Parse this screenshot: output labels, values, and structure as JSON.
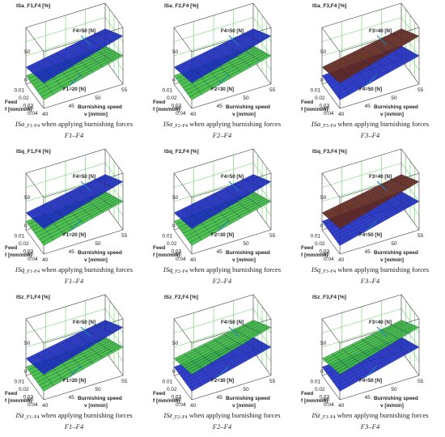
{
  "caption_suffix": "when applying burnishing forces",
  "axis_labels": {
    "feed_name": "Feed",
    "feed_unit": "f [mm/min]",
    "speed_name": "Burnishing speed",
    "speed_unit": "v [m/min]"
  },
  "colors": {
    "blue_surface": "#1f2fc8",
    "green_surface": "#3fbf3f",
    "brown_surface": "#6b2a1a",
    "box_grid": "#6cd36c",
    "annotation_arrow": "#1e7fc0"
  },
  "chart_data": [
    {
      "type": "surface",
      "title": "ISa_F1,F4 [%]",
      "caption_symbol": "ISa",
      "caption_sub": "_F1–F4",
      "caption_forces": "F1–F4",
      "z_ticks": [
        "50",
        "0",
        "−50"
      ],
      "f_ticks": [
        "0.04",
        "0.03",
        "0.02",
        "0.01"
      ],
      "v_ticks": [
        "40",
        "45",
        "50",
        "55"
      ],
      "top_surface": "blue",
      "bottom_surface": "green",
      "labels": [
        {
          "text": "F4=50 [N]",
          "series": "top"
        },
        {
          "text": "F1=20 [N]",
          "series": "bottom"
        }
      ],
      "z_range": [
        -50,
        50
      ]
    },
    {
      "type": "surface",
      "title": "ISa_F2,F4 [%]",
      "caption_symbol": "ISa",
      "caption_sub": "_F2–F4",
      "caption_forces": "F2–F4",
      "z_ticks": [
        "50",
        "0",
        "−50"
      ],
      "f_ticks": [
        "0.04",
        "0.03",
        "0.02",
        "0.01"
      ],
      "v_ticks": [
        "40",
        "45",
        "50",
        "55"
      ],
      "top_surface": "blue",
      "bottom_surface": "green",
      "labels": [
        {
          "text": "F4=50 [N]",
          "series": "top"
        },
        {
          "text": "F2=30 [N]",
          "series": "bottom"
        }
      ],
      "z_range": [
        -50,
        50
      ]
    },
    {
      "type": "surface",
      "title": "ISa_F3,F4 [%]",
      "caption_symbol": "ISa",
      "caption_sub": "_F3–F4",
      "caption_forces": "F3–F4",
      "z_ticks": [
        "50",
        "0",
        "−50"
      ],
      "f_ticks": [
        "0.04",
        "0.03",
        "0.02",
        "0.01"
      ],
      "v_ticks": [
        "40",
        "45",
        "50",
        "55"
      ],
      "top_surface": "brown",
      "bottom_surface": "blue",
      "labels": [
        {
          "text": "F3=40 [N]",
          "series": "top"
        },
        {
          "text": "F4=50 [N]",
          "series": "bottom"
        }
      ],
      "z_range": [
        -50,
        50
      ]
    },
    {
      "type": "surface",
      "title": "ISq_F1,F4 [%]",
      "caption_symbol": "ISq",
      "caption_sub": "_F1–F4",
      "caption_forces": "F1–F4",
      "z_ticks": [
        "50",
        "0",
        "−50"
      ],
      "f_ticks": [
        "0.04",
        "0.03",
        "0.02",
        "0.01"
      ],
      "v_ticks": [
        "40",
        "45",
        "50",
        "55"
      ],
      "top_surface": "blue",
      "bottom_surface": "green",
      "labels": [
        {
          "text": "F4=50 [N]",
          "series": "top"
        },
        {
          "text": "F1=20 [N]",
          "series": "bottom"
        }
      ],
      "z_range": [
        -50,
        50
      ]
    },
    {
      "type": "surface",
      "title": "ISq_F2,F4 [%]",
      "caption_symbol": "ISq",
      "caption_sub": "_F2–F4",
      "caption_forces": "F2–F4",
      "z_ticks": [
        "50",
        "0",
        "−50"
      ],
      "f_ticks": [
        "0.04",
        "0.03",
        "0.02",
        "0.01"
      ],
      "v_ticks": [
        "40",
        "45",
        "50",
        "55"
      ],
      "top_surface": "blue",
      "bottom_surface": "green",
      "labels": [
        {
          "text": "F4=50 [N]",
          "series": "top"
        },
        {
          "text": "F2=30 [N]",
          "series": "bottom"
        }
      ],
      "z_range": [
        -50,
        50
      ]
    },
    {
      "type": "surface",
      "title": "ISq_F3,F4 [%]",
      "caption_symbol": "ISq",
      "caption_sub": "_F3–F4",
      "caption_forces": "F3–F4",
      "z_ticks": [
        "50",
        "0",
        "−50"
      ],
      "f_ticks": [
        "0.04",
        "0.03",
        "0.02",
        "0.01"
      ],
      "v_ticks": [
        "40",
        "45",
        "50",
        "55"
      ],
      "top_surface": "brown",
      "bottom_surface": "blue",
      "labels": [
        {
          "text": "F3=40 [N]",
          "series": "top"
        },
        {
          "text": "F4=50 [N]",
          "series": "bottom"
        }
      ],
      "z_range": [
        -50,
        50
      ]
    },
    {
      "type": "surface",
      "title": "ISz_F1,F4 [%]",
      "caption_symbol": "ISz",
      "caption_sub": "_F1–F4",
      "caption_forces": "F1–F4",
      "z_ticks": [
        "50",
        "0",
        "−50"
      ],
      "f_ticks": [
        "0.04",
        "0.03",
        "0.02",
        "0.01"
      ],
      "v_ticks": [
        "40",
        "45",
        "50",
        "55"
      ],
      "top_surface": "blue",
      "bottom_surface": "green",
      "labels": [
        {
          "text": "F4=50 [N]",
          "series": "top"
        },
        {
          "text": "F1=20 [N]",
          "series": "bottom"
        }
      ],
      "z_range": [
        -50,
        50
      ]
    },
    {
      "type": "surface",
      "title": "ISz_F2,F4 [%]",
      "caption_symbol": "ISz",
      "caption_sub": "_F2–F4",
      "caption_forces": "F2–F4",
      "z_ticks": [
        "50",
        "0",
        "−50"
      ],
      "f_ticks": [
        "0.04",
        "0.03",
        "0.02",
        "0.01"
      ],
      "v_ticks": [
        "40",
        "45",
        "50",
        "55"
      ],
      "top_surface": "green",
      "bottom_surface": "blue",
      "labels": [
        {
          "text": "F4=50 [N]",
          "series": "top"
        },
        {
          "text": "F2=30 [N]",
          "series": "bottom"
        }
      ],
      "z_range": [
        -50,
        50
      ]
    },
    {
      "type": "surface",
      "title": "ISz_F3,F4 [%]",
      "caption_symbol": "ISz",
      "caption_sub": "_F3–F4",
      "caption_forces": "F3–F4",
      "z_ticks": [
        "50",
        "0",
        "−50"
      ],
      "f_ticks": [
        "0.04",
        "0.03",
        "0.02",
        "0.01"
      ],
      "v_ticks": [
        "40",
        "45",
        "50",
        "55"
      ],
      "top_surface": "green",
      "bottom_surface": "blue",
      "labels": [
        {
          "text": "F3=40 [N]",
          "series": "top"
        },
        {
          "text": "F4=50 [N]",
          "series": "bottom"
        }
      ],
      "z_range": [
        -50,
        50
      ]
    }
  ]
}
